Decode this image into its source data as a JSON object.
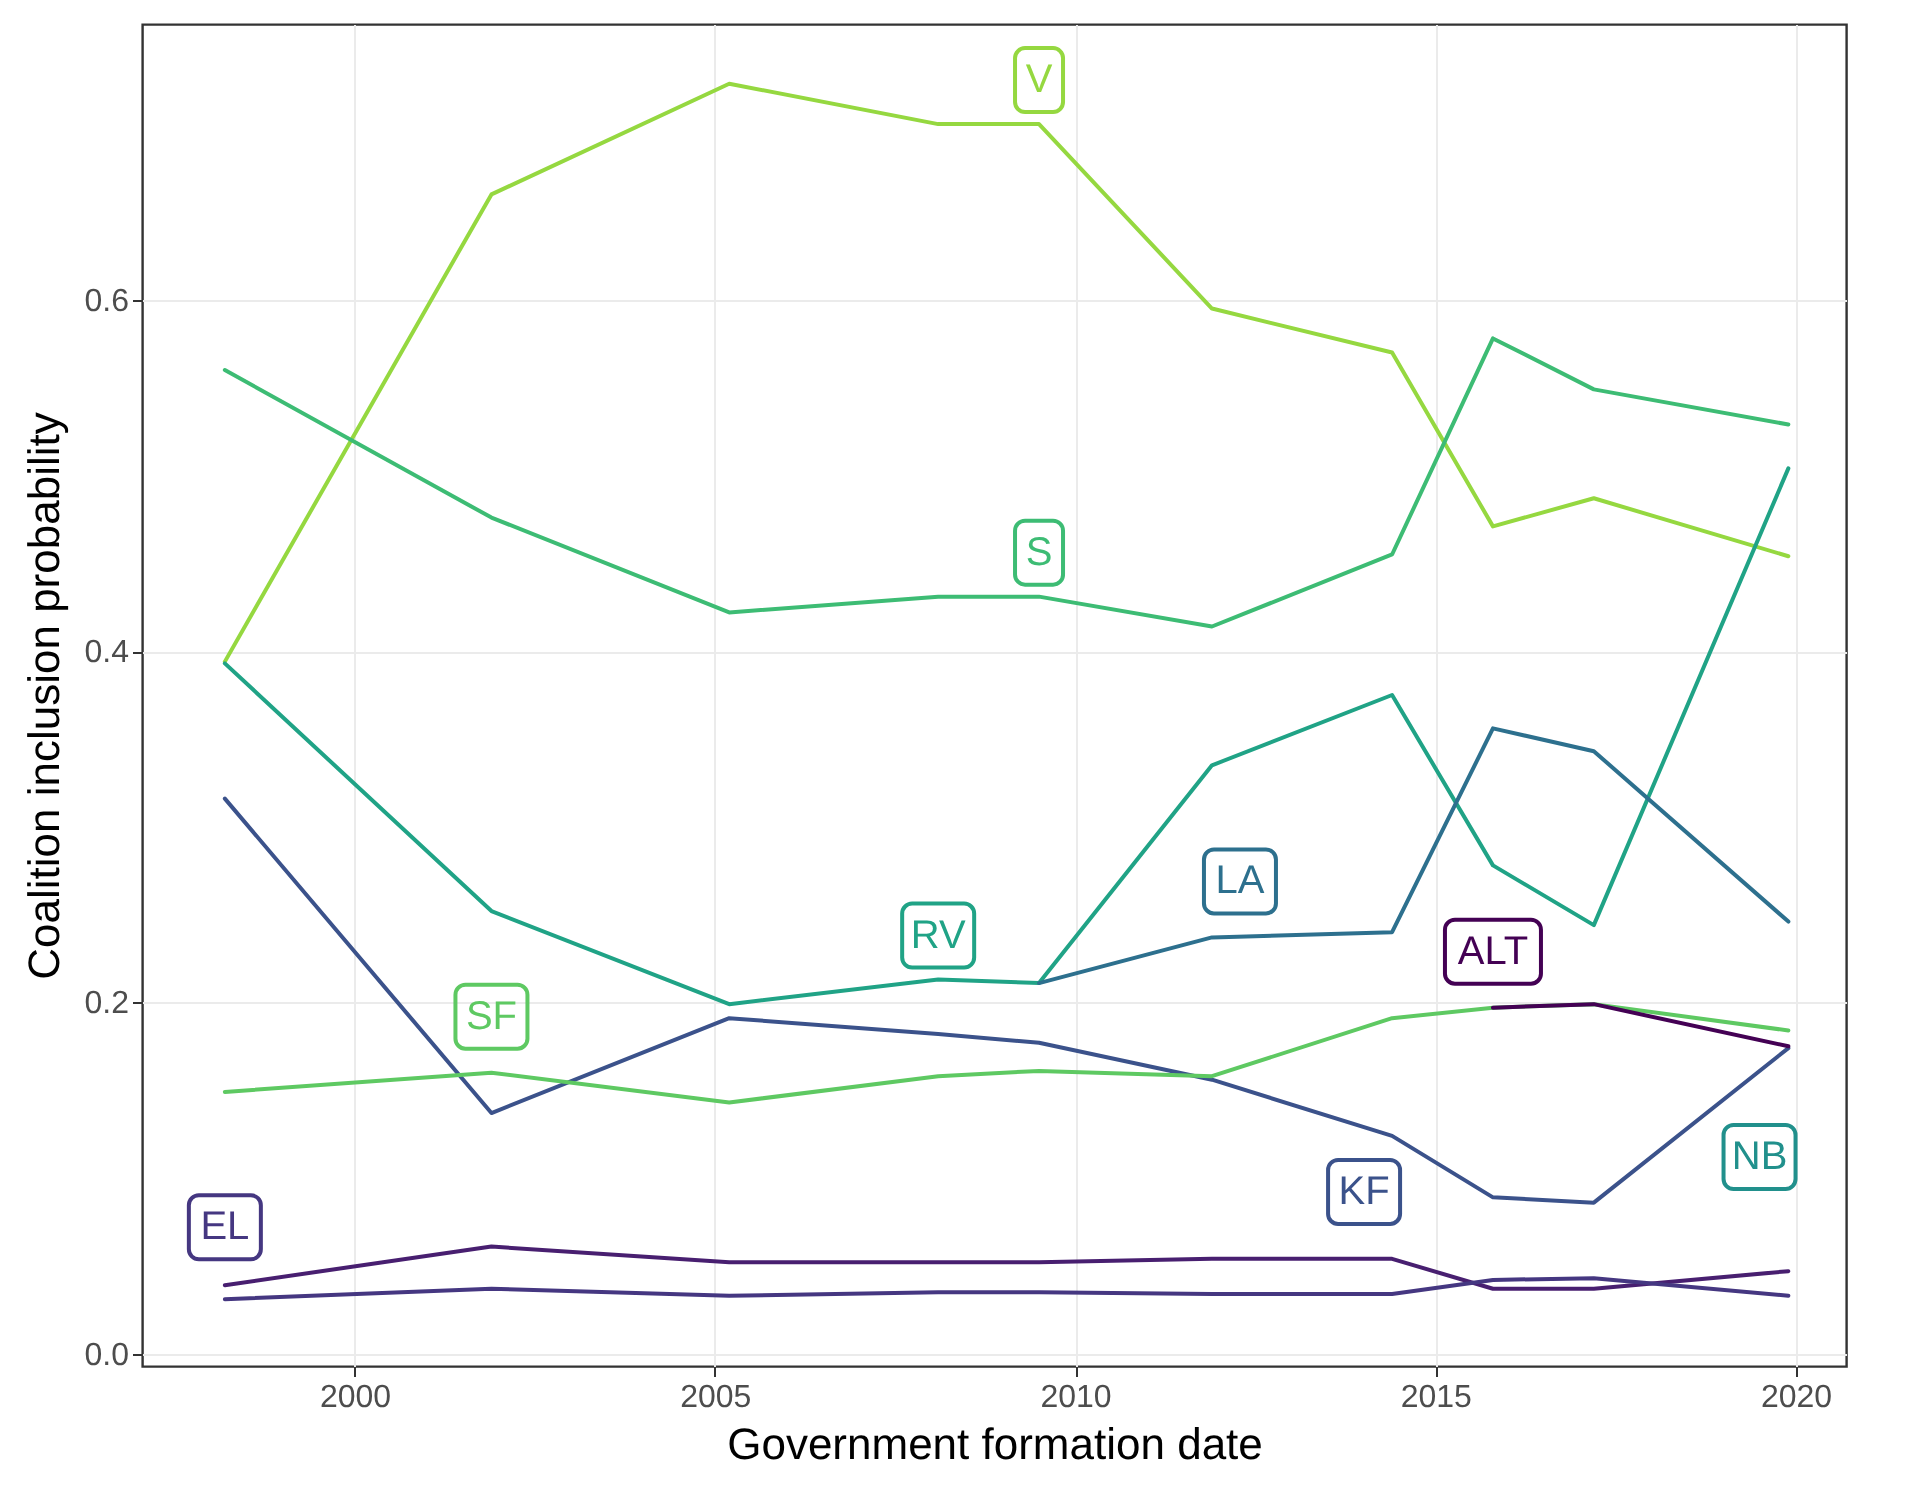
{
  "chart_data": {
    "type": "line",
    "xlabel": "Government formation date",
    "ylabel": "Coalition inclusion probability",
    "x": [
      1998.2,
      2001.9,
      2005.2,
      2008.1,
      2009.5,
      2011.9,
      2014.4,
      2015.8,
      2017.2,
      2019.9
    ],
    "series": [
      {
        "name": "V",
        "color": "#95d840",
        "values": [
          0.394,
          0.66,
          0.723,
          0.7,
          0.7,
          0.595,
          0.57,
          0.471,
          0.487,
          0.454
        ]
      },
      {
        "name": "S",
        "color": "#3dbc74",
        "values": [
          0.56,
          0.476,
          0.422,
          0.431,
          0.431,
          0.414,
          0.455,
          0.578,
          0.549,
          0.529
        ]
      },
      {
        "name": "RV",
        "color": "#20a386",
        "values": [
          0.393,
          0.252,
          0.199,
          0.213,
          0.211,
          0.335,
          0.375,
          0.278,
          0.244,
          0.504
        ]
      },
      {
        "name": "LA",
        "color": "#2d708e",
        "values": [
          null,
          null,
          null,
          null,
          0.211,
          0.237,
          0.24,
          0.356,
          0.343,
          0.246
        ]
      },
      {
        "name": "KF",
        "color": "#3b528b",
        "values": [
          0.316,
          0.137,
          0.191,
          0.182,
          0.177,
          0.156,
          0.124,
          0.089,
          0.086,
          0.174
        ]
      },
      {
        "name": "SF",
        "color": "#5ec962",
        "values": [
          0.149,
          0.16,
          0.143,
          0.158,
          0.161,
          0.158,
          0.191,
          0.197,
          0.199,
          0.184
        ]
      },
      {
        "name": "ALT",
        "color": "#440154",
        "values": [
          null,
          null,
          null,
          null,
          null,
          null,
          null,
          0.197,
          0.199,
          0.175
        ]
      },
      {
        "color": "#481f70",
        "values": [
          0.039,
          0.061,
          0.052,
          0.052,
          0.052,
          0.054,
          0.054,
          0.037,
          0.037,
          0.047
        ]
      },
      {
        "name": "EL",
        "color": "#453781",
        "values": [
          0.031,
          0.037,
          0.033,
          0.035,
          0.035,
          0.034,
          0.034,
          0.042,
          0.043,
          0.033
        ]
      }
    ],
    "annotations": [
      {
        "text": "NB",
        "x": 2019.5,
        "y": 0.112
      }
    ],
    "xlim": [
      1997.05,
      2020.7
    ],
    "xticks": [
      2000,
      2005,
      2010,
      2015,
      2020
    ],
    "ylim": [
      -0.007,
      0.757
    ],
    "yticks": [
      {
        "value": 0,
        "label": "0.0"
      },
      {
        "value": 0.2,
        "label": "0.2"
      },
      {
        "value": 0.4,
        "label": "0.4"
      },
      {
        "value": 0.6,
        "label": "0.6"
      }
    ],
    "grid": true,
    "line_style": "solid",
    "marker": "none"
  }
}
